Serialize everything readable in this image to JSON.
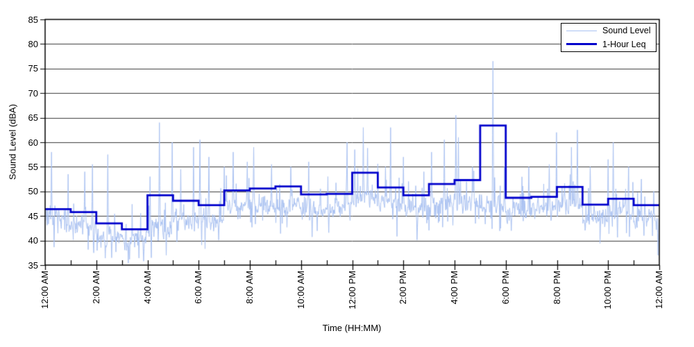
{
  "chart_data": {
    "type": "line",
    "title": "",
    "xlabel": "Time (HH:MM)",
    "ylabel": "Sound Level (dBA)",
    "ylim": [
      35,
      85
    ],
    "xlim_hours": [
      0,
      24
    ],
    "y_ticks": [
      35,
      40,
      45,
      50,
      55,
      60,
      65,
      70,
      75,
      80,
      85
    ],
    "x_tick_hours": [
      0,
      2,
      4,
      6,
      8,
      10,
      12,
      14,
      16,
      18,
      20,
      22,
      24
    ],
    "x_tick_labels": [
      "12:00 AM",
      "2:00 AM",
      "4:00 AM",
      "6:00 AM",
      "8:00 AM",
      "10:00 AM",
      "12:00 PM",
      "2:00 PM",
      "4:00 PM",
      "6:00 PM",
      "8:00 PM",
      "10:00 PM",
      "12:00 AM"
    ],
    "grid": "horizontal",
    "background": "#ffffff",
    "axis_color": "#000000",
    "grid_color": "#3a3a3a",
    "legend": {
      "position": "top-right",
      "entries": [
        {
          "label": "Sound Level",
          "color": "#aac2f2",
          "line_width": 1
        },
        {
          "label": "1-Hour Leq",
          "color": "#0000cc",
          "line_width": 3
        }
      ]
    },
    "series": [
      {
        "name": "Sound Level",
        "type": "raw-minute",
        "color": "#aac2f2",
        "seed": 20240613,
        "noise_sd": 1.9,
        "hourly_base": [
          44.5,
          43.5,
          40.5,
          40.0,
          42.5,
          44.0,
          44.5,
          47.0,
          47.5,
          47.5,
          46.5,
          46.5,
          48.5,
          47.5,
          46.5,
          47.5,
          48.0,
          47.0,
          46.0,
          46.5,
          47.0,
          44.5,
          45.5,
          44.5
        ],
        "spikes_hour_dBA": [
          [
            0.25,
            58
          ],
          [
            0.9,
            53.5
          ],
          [
            1.55,
            54
          ],
          [
            1.85,
            55.5
          ],
          [
            2.45,
            57.5
          ],
          [
            4.1,
            53
          ],
          [
            4.47,
            64
          ],
          [
            4.97,
            60
          ],
          [
            5.3,
            54.5
          ],
          [
            5.8,
            59
          ],
          [
            6.05,
            60.5
          ],
          [
            6.4,
            57
          ],
          [
            7.0,
            55
          ],
          [
            7.35,
            58
          ],
          [
            7.9,
            56
          ],
          [
            8.15,
            59
          ],
          [
            8.85,
            55.5
          ],
          [
            9.6,
            55
          ],
          [
            10.3,
            56
          ],
          [
            11.05,
            53
          ],
          [
            11.8,
            60
          ],
          [
            12.1,
            58.5
          ],
          [
            12.43,
            63
          ],
          [
            12.6,
            58.8
          ],
          [
            13.3,
            55
          ],
          [
            13.5,
            63
          ],
          [
            14.0,
            57
          ],
          [
            14.8,
            54
          ],
          [
            15.1,
            58
          ],
          [
            15.6,
            60.5
          ],
          [
            16.05,
            65.5
          ],
          [
            16.15,
            61
          ],
          [
            16.7,
            55
          ],
          [
            17.5,
            76.5
          ],
          [
            17.95,
            55
          ],
          [
            18.9,
            55
          ],
          [
            19.7,
            55.5
          ],
          [
            19.98,
            62
          ],
          [
            20.56,
            59
          ],
          [
            20.8,
            62.5
          ],
          [
            21.3,
            55
          ],
          [
            22.0,
            56.5
          ],
          [
            22.2,
            60
          ],
          [
            22.8,
            55
          ],
          [
            23.3,
            52.5
          ]
        ],
        "dips_hour_dBA": [
          [
            1.9,
            37.5
          ],
          [
            2.6,
            36.5
          ],
          [
            3.3,
            36.2
          ],
          [
            3.85,
            35.8
          ],
          [
            4.15,
            36.5
          ],
          [
            23.95,
            37
          ]
        ]
      },
      {
        "name": "1-Hour Leq",
        "type": "step-hourly",
        "color": "#0000cc",
        "values": [
          46.4,
          45.8,
          43.5,
          42.3,
          49.2,
          48.1,
          47.2,
          50.2,
          50.6,
          51.0,
          49.4,
          49.5,
          53.8,
          50.8,
          49.2,
          51.5,
          52.3,
          63.4,
          48.7,
          48.9,
          50.9,
          47.3,
          48.5,
          47.2
        ]
      }
    ]
  }
}
